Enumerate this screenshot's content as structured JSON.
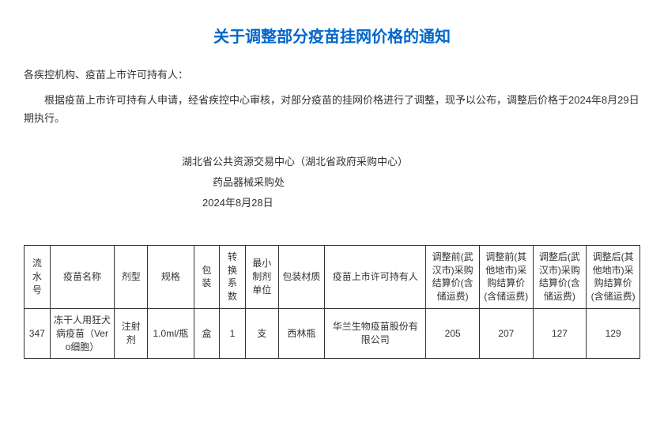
{
  "title": "关于调整部分疫苗挂网价格的通知",
  "salutation": "各疾控机构、疫苗上市许可持有人：",
  "body": "根据疫苗上市许可持有人申请，经省疾控中心审核，对部分疫苗的挂网价格进行了调整，现予以公布，调整后价格于2024年8月29日期执行。",
  "signature": {
    "line1": "湖北省公共资源交易中心（湖北省政府采购中心）",
    "line2": "药品器械采购处",
    "line3": "2024年8月28日"
  },
  "table": {
    "headers": {
      "serial": "流水号",
      "name": "疫苗名称",
      "form": "剂型",
      "spec": "规格",
      "pack": "包装",
      "conv": "转换系数",
      "unit": "最小制剂单位",
      "mat": "包装材质",
      "holder": "疫苗上市许可持有人",
      "p1": "调整前(武汉市)采购结算价(含储运费)",
      "p2": "调整前(其他地市)采购结算价(含储运费)",
      "p3": "调整后(武汉市)采购结算价(含储运费)",
      "p4": "调整后(其他地市)采购结算价(含储运费)"
    },
    "rows": [
      {
        "serial": "347",
        "name": "冻干人用狂犬病疫苗（Vero细胞）",
        "form": "注射剂",
        "spec": "1.0ml/瓶",
        "pack": "盒",
        "conv": "1",
        "unit": "支",
        "mat": "西林瓶",
        "holder": "华兰生物疫苗股份有限公司",
        "p1": "205",
        "p2": "207",
        "p3": "127",
        "p4": "129"
      }
    ]
  },
  "colors": {
    "title": "#0066cc",
    "text": "#333333",
    "border": "#333333",
    "background": "#ffffff"
  }
}
